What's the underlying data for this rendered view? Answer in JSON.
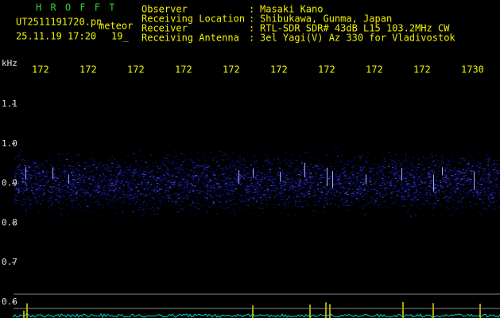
{
  "header": {
    "app_name": "H R O F F T",
    "file_name": "UT2511191720.pn",
    "mode": "meteor",
    "datetime": "25.11.19 17:20",
    "hour": "19_",
    "fields": [
      {
        "label": "Observer",
        "value": "Masaki Kano"
      },
      {
        "label": "Receiving Location",
        "value": "Shibukawa, Gunma, Japan"
      },
      {
        "label": "Receiver",
        "value": "RTL-SDR SDR# 43dB L15 103.2MHz CW"
      },
      {
        "label": "Receiving Antenna",
        "value": "3el Yagi(V) Az 330 for Vladivostok"
      }
    ],
    "separator": ":"
  },
  "axes": {
    "unit": "kHz",
    "time_labels": [
      "172",
      "172",
      "172",
      "172",
      "172",
      "172",
      "172",
      "172",
      "172",
      "1730"
    ],
    "freq_labels": [
      "1.1",
      "1.0",
      "0.9",
      "0.8",
      "0.7",
      "0.6"
    ]
  }
}
